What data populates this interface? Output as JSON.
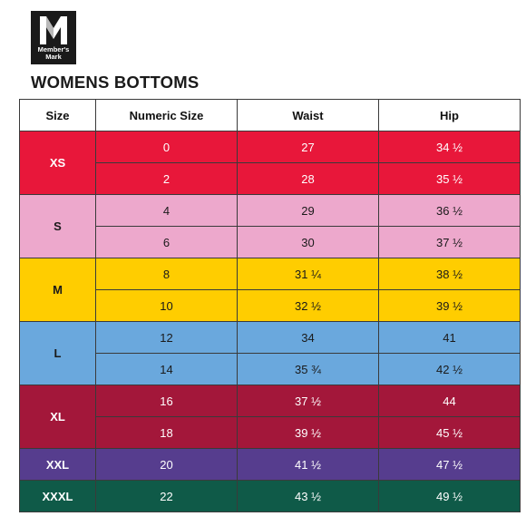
{
  "brand": {
    "logo_line1": "Member's",
    "logo_line2": "Mark"
  },
  "title": "WOMENS BOTTOMS",
  "table": {
    "headers": [
      "Size",
      "Numeric Size",
      "Waist",
      "Hip"
    ],
    "groups": [
      {
        "size": "XS",
        "bg": "#e8173a",
        "fg": "#ffffff",
        "rows": [
          {
            "numeric": "0",
            "waist": "27",
            "hip": "34 ½"
          },
          {
            "numeric": "2",
            "waist": "28",
            "hip": "35 ½"
          }
        ]
      },
      {
        "size": "S",
        "bg": "#eda8cc",
        "fg": "#1a1a1a",
        "rows": [
          {
            "numeric": "4",
            "waist": "29",
            "hip": "36 ½"
          },
          {
            "numeric": "6",
            "waist": "30",
            "hip": "37 ½"
          }
        ]
      },
      {
        "size": "M",
        "bg": "#ffcd00",
        "fg": "#1a1a1a",
        "rows": [
          {
            "numeric": "8",
            "waist": "31 ¼",
            "hip": "38 ½"
          },
          {
            "numeric": "10",
            "waist": "32 ½",
            "hip": "39 ½"
          }
        ]
      },
      {
        "size": "L",
        "bg": "#6aa8dd",
        "fg": "#1a1a1a",
        "rows": [
          {
            "numeric": "12",
            "waist": "34",
            "hip": "41"
          },
          {
            "numeric": "14",
            "waist": "35 ¾",
            "hip": "42 ½"
          }
        ]
      },
      {
        "size": "XL",
        "bg": "#a3173a",
        "fg": "#ffffff",
        "rows": [
          {
            "numeric": "16",
            "waist": "37 ½",
            "hip": "44"
          },
          {
            "numeric": "18",
            "waist": "39 ½",
            "hip": "45 ½"
          }
        ]
      },
      {
        "size": "XXL",
        "bg": "#563d8e",
        "fg": "#ffffff",
        "rows": [
          {
            "numeric": "20",
            "waist": "41 ½",
            "hip": "47 ½"
          }
        ]
      },
      {
        "size": "XXXL",
        "bg": "#0f5a48",
        "fg": "#ffffff",
        "rows": [
          {
            "numeric": "22",
            "waist": "43 ½",
            "hip": "49 ½"
          }
        ]
      }
    ]
  }
}
